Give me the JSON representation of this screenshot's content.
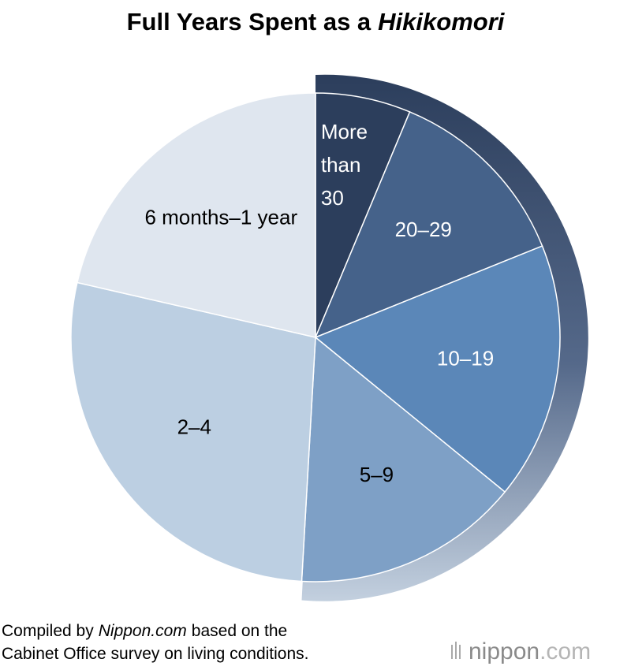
{
  "chart_data": {
    "type": "pie",
    "title_parts": [
      "Full Years Spent as a",
      "Hikikomori"
    ],
    "categories": [
      "More than 30",
      "20–29",
      "10–19",
      "5–9",
      "2–4",
      "6 months–1 year"
    ],
    "values": [
      6.3,
      12.6,
      17.0,
      15.0,
      27.7,
      21.4
    ],
    "colors": [
      "#2c3e5c",
      "#45628a",
      "#5b87b8",
      "#7ea0c6",
      "#bccfe2",
      "#dfe6ef"
    ],
    "start_angle": 0,
    "direction": "clockwise"
  },
  "footer": {
    "source_parts": [
      "Compiled by",
      "Nippon.com",
      "based on the",
      "Cabinet Office survey on living conditions."
    ],
    "logo_parts": [
      "nippon",
      ".com"
    ]
  }
}
